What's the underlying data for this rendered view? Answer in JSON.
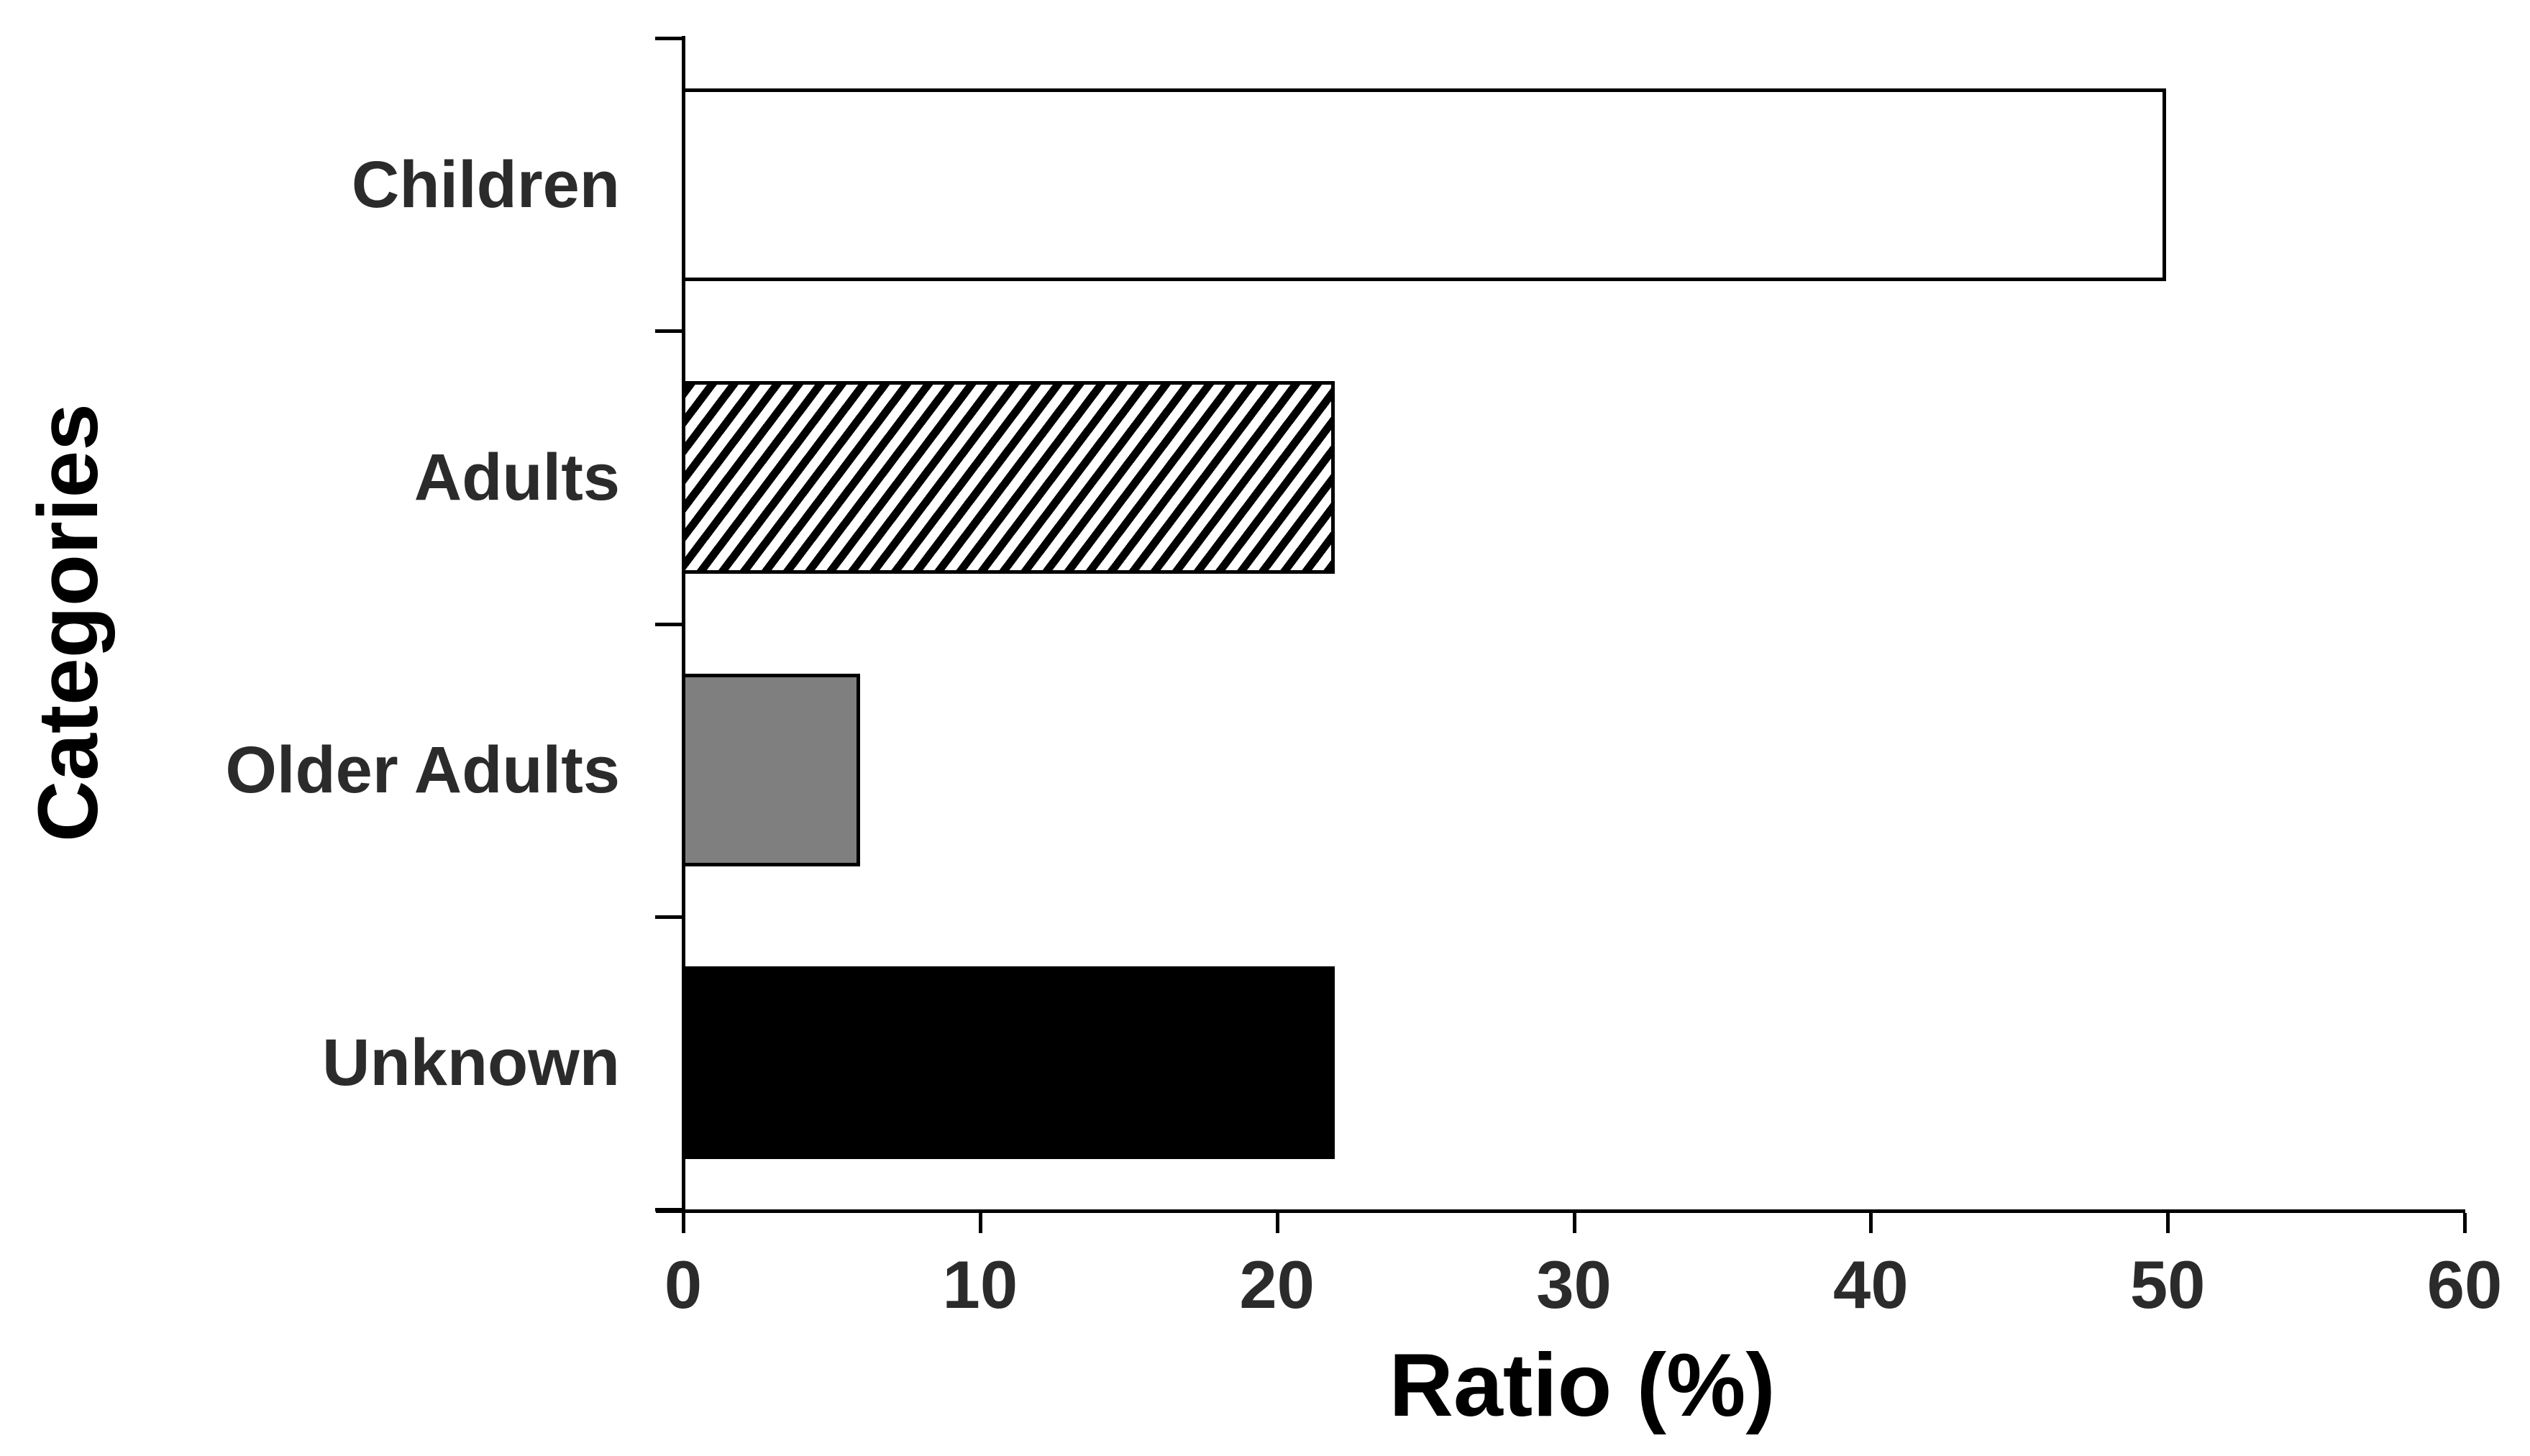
{
  "chart_data": {
    "type": "bar",
    "orientation": "horizontal",
    "categories": [
      "Children",
      "Adults",
      "Older Adults",
      "Unknown"
    ],
    "values": [
      50,
      22,
      6,
      22
    ],
    "bar_fills": [
      "white",
      "hatch-diagonal",
      "gray",
      "black"
    ],
    "xlabel": "Ratio (%)",
    "ylabel": "Categories",
    "xlim": [
      0,
      60
    ],
    "x_ticks": [
      "0",
      "10",
      "20",
      "30",
      "40",
      "50",
      "60"
    ],
    "grid": false,
    "legend": false,
    "colors": {
      "axis": "#000000",
      "bar_border": "#000000",
      "gray_fill": "#7f7f7f",
      "label_text": "#2b2b2b",
      "title_text": "#000000",
      "background": "#ffffff"
    }
  }
}
